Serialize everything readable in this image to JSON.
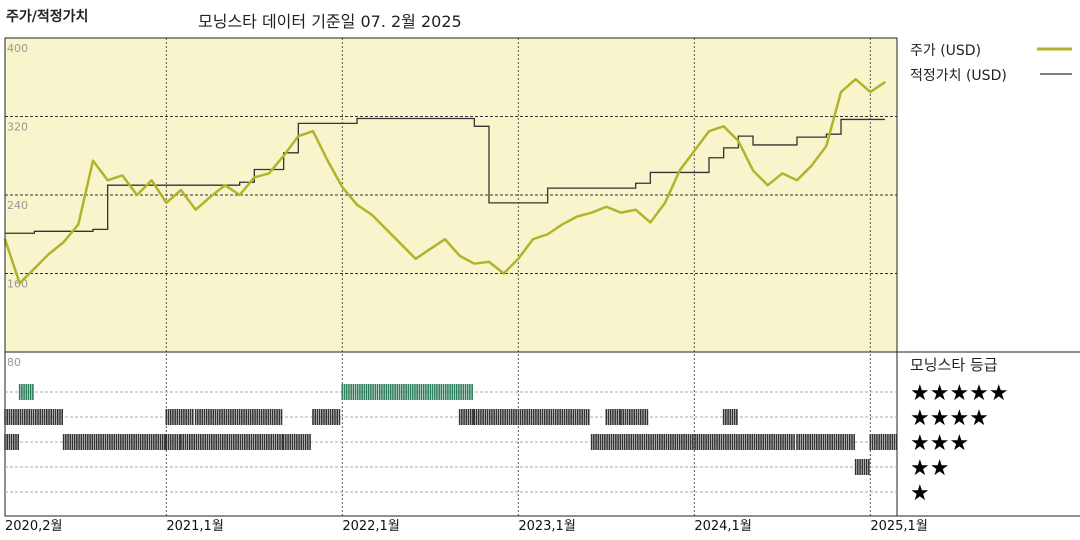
{
  "chart_data": {
    "type": "line",
    "title": "주가/적정가치",
    "subtitle": "모닝스타 데이터 기준일 07. 2월 2025",
    "x_range": [
      "2020-02",
      "2025-02"
    ],
    "x_tick_labels": [
      "2020,2월",
      "2021,1월",
      "2022,1월",
      "2023,1월",
      "2024,1월",
      "2025,1월"
    ],
    "y_range": [
      80,
      400
    ],
    "y_tick_labels": [
      "400",
      "320",
      "240",
      "160",
      "80"
    ],
    "grid": true,
    "legend_placement": "right",
    "series": [
      {
        "name": "주가 (USD)",
        "color": "#b0b42a",
        "points": [
          [
            "2020-02",
            195
          ],
          [
            "2020-03",
            150
          ],
          [
            "2020-04",
            165
          ],
          [
            "2020-05",
            180
          ],
          [
            "2020-06",
            192
          ],
          [
            "2020-07",
            210
          ],
          [
            "2020-08",
            275
          ],
          [
            "2020-09",
            255
          ],
          [
            "2020-10",
            260
          ],
          [
            "2020-11",
            240
          ],
          [
            "2020-12",
            255
          ],
          [
            "2021-01",
            232
          ],
          [
            "2021-02",
            245
          ],
          [
            "2021-03",
            225
          ],
          [
            "2021-04",
            238
          ],
          [
            "2021-05",
            250
          ],
          [
            "2021-06",
            240
          ],
          [
            "2021-07",
            258
          ],
          [
            "2021-08",
            262
          ],
          [
            "2021-09",
            280
          ],
          [
            "2021-10",
            300
          ],
          [
            "2021-11",
            305
          ],
          [
            "2021-12",
            275
          ],
          [
            "2022-01",
            248
          ],
          [
            "2022-02",
            230
          ],
          [
            "2022-03",
            220
          ],
          [
            "2022-04",
            205
          ],
          [
            "2022-05",
            190
          ],
          [
            "2022-06",
            175
          ],
          [
            "2022-07",
            185
          ],
          [
            "2022-08",
            195
          ],
          [
            "2022-09",
            178
          ],
          [
            "2022-10",
            170
          ],
          [
            "2022-11",
            172
          ],
          [
            "2022-12",
            160
          ],
          [
            "2023-01",
            175
          ],
          [
            "2023-02",
            195
          ],
          [
            "2023-03",
            200
          ],
          [
            "2023-04",
            210
          ],
          [
            "2023-05",
            218
          ],
          [
            "2023-06",
            222
          ],
          [
            "2023-07",
            228
          ],
          [
            "2023-08",
            222
          ],
          [
            "2023-09",
            225
          ],
          [
            "2023-10",
            212
          ],
          [
            "2023-11",
            232
          ],
          [
            "2023-12",
            265
          ],
          [
            "2024-01",
            285
          ],
          [
            "2024-02",
            305
          ],
          [
            "2024-03",
            310
          ],
          [
            "2024-04",
            295
          ],
          [
            "2024-05",
            265
          ],
          [
            "2024-06",
            250
          ],
          [
            "2024-07",
            262
          ],
          [
            "2024-08",
            255
          ],
          [
            "2024-09",
            270
          ],
          [
            "2024-10",
            290
          ],
          [
            "2024-11",
            345
          ],
          [
            "2024-12",
            358
          ],
          [
            "2025-01",
            345
          ],
          [
            "2025-02",
            355
          ]
        ]
      },
      {
        "name": "적정가치 (USD)",
        "color": "#333333",
        "points": [
          [
            "2020-02",
            201
          ],
          [
            "2020-04",
            203
          ],
          [
            "2020-08",
            205
          ],
          [
            "2020-09",
            250
          ],
          [
            "2021-06",
            253
          ],
          [
            "2021-07",
            266
          ],
          [
            "2021-09",
            283
          ],
          [
            "2021-10",
            313
          ],
          [
            "2022-01",
            313
          ],
          [
            "2022-02",
            318
          ],
          [
            "2022-10",
            310
          ],
          [
            "2022-11",
            232
          ],
          [
            "2023-02",
            232
          ],
          [
            "2023-03",
            247
          ],
          [
            "2023-09",
            252
          ],
          [
            "2023-10",
            263
          ],
          [
            "2024-02",
            278
          ],
          [
            "2024-03",
            288
          ],
          [
            "2024-04",
            300
          ],
          [
            "2024-05",
            291
          ],
          [
            "2024-08",
            299
          ],
          [
            "2024-10",
            302
          ],
          [
            "2024-11",
            317
          ],
          [
            "2025-02",
            317
          ]
        ]
      }
    ],
    "rating_panel": {
      "title": "모닝스타 등급",
      "levels": [
        "★★★★★",
        "★★★★",
        "★★★",
        "★★",
        "★"
      ],
      "level_colors": [
        "#2e7d5b",
        "#333333",
        "#333333",
        "#333333",
        "#333333"
      ],
      "segments": [
        {
          "level": 5,
          "from": "2020-03",
          "to": "2020-03"
        },
        {
          "level": 5,
          "from": "2022-01",
          "to": "2022-09"
        },
        {
          "level": 4,
          "from": "2020-02",
          "to": "2020-05"
        },
        {
          "level": 4,
          "from": "2021-01",
          "to": "2021-02"
        },
        {
          "level": 4,
          "from": "2021-03",
          "to": "2021-08"
        },
        {
          "level": 4,
          "from": "2021-11",
          "to": "2021-12"
        },
        {
          "level": 4,
          "from": "2022-09",
          "to": "2022-09"
        },
        {
          "level": 4,
          "from": "2022-10",
          "to": "2023-05"
        },
        {
          "level": 4,
          "from": "2023-07",
          "to": "2023-07"
        },
        {
          "level": 4,
          "from": "2023-08",
          "to": "2023-09"
        },
        {
          "level": 4,
          "from": "2024-03",
          "to": "2024-03"
        },
        {
          "level": 3,
          "from": "2020-02",
          "to": "2020-02"
        },
        {
          "level": 3,
          "from": "2020-06",
          "to": "2020-12"
        },
        {
          "level": 3,
          "from": "2021-01",
          "to": "2021-01"
        },
        {
          "level": 3,
          "from": "2021-02",
          "to": "2021-07"
        },
        {
          "level": 3,
          "from": "2021-08",
          "to": "2021-08"
        },
        {
          "level": 3,
          "from": "2021-09",
          "to": "2021-10"
        },
        {
          "level": 3,
          "from": "2023-06",
          "to": "2023-08"
        },
        {
          "level": 3,
          "from": "2023-09",
          "to": "2024-02"
        },
        {
          "level": 3,
          "from": "2024-03",
          "to": "2024-07"
        },
        {
          "level": 3,
          "from": "2024-08",
          "to": "2024-11"
        },
        {
          "level": 3,
          "from": "2025-01",
          "to": "2025-02"
        },
        {
          "level": 2,
          "from": "2024-12",
          "to": "2024-12"
        }
      ]
    }
  },
  "colors": {
    "plot_background": "#f8f5cd",
    "price": "#b0b42a",
    "fair_value": "#333333"
  }
}
